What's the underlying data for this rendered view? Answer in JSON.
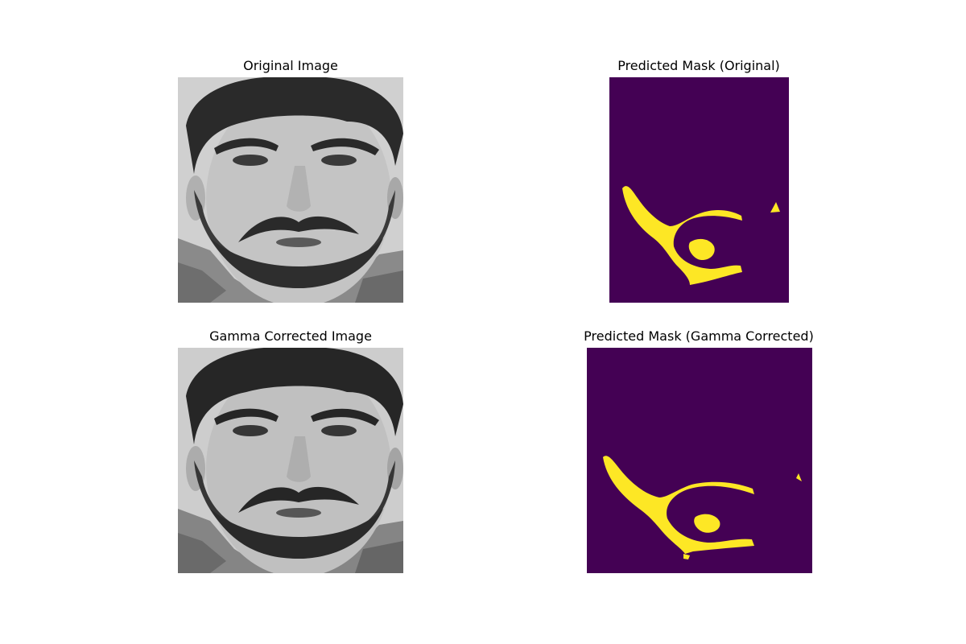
{
  "panels": [
    {
      "title": "Original Image",
      "kind": "photo"
    },
    {
      "title": "Predicted Mask (Original)",
      "kind": "mask"
    },
    {
      "title": "Gamma Corrected Image",
      "kind": "photo"
    },
    {
      "title": "Predicted Mask (Gamma Corrected)",
      "kind": "mask"
    }
  ],
  "colors": {
    "mask_background": "#440154",
    "mask_foreground": "#fde725",
    "photo_background": "#c8c8c8",
    "hair_beard": "#2a2a2a",
    "skin": "#bdbdbd"
  }
}
